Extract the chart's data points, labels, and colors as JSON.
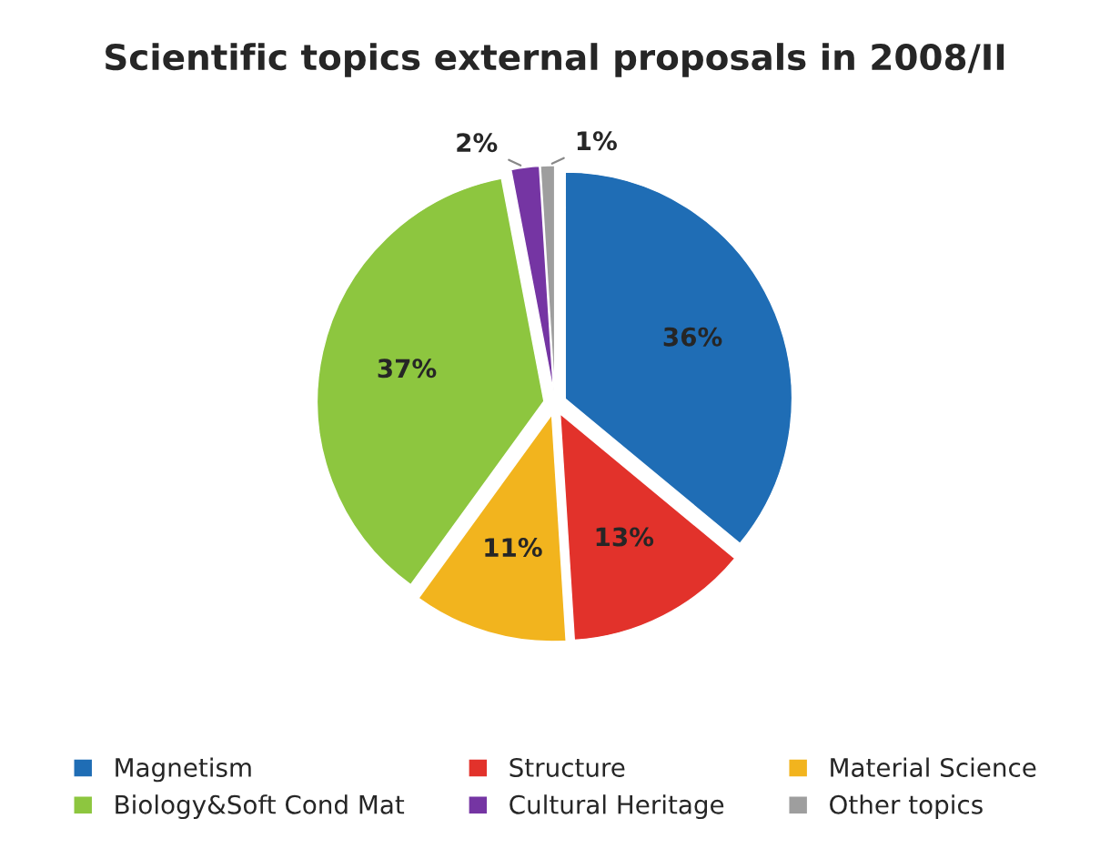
{
  "chart_data": {
    "type": "pie",
    "title": "Scientific topics external proposals in 2008/II",
    "categories": [
      "Magnetism",
      "Structure",
      "Material Science",
      "Biology&Soft Cond Mat",
      "Cultural Heritage",
      "Other topics"
    ],
    "values": [
      36,
      13,
      11,
      37,
      2,
      1
    ],
    "value_labels": [
      "36%",
      "13%",
      "11%",
      "37%",
      "2%",
      "1%"
    ],
    "colors": [
      "#1f6db5",
      "#e2322b",
      "#f2b41e",
      "#8dc63f",
      "#7535a3",
      "#9e9e9e"
    ],
    "legend": "bottom"
  }
}
